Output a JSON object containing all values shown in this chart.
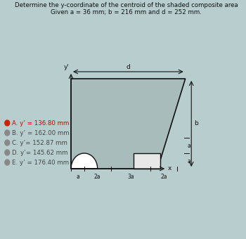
{
  "title": "Determine the y-coordinate of the centroid of the shaded composite area",
  "given": "Given a = 36 mm; b = 216 mm and d = 252 mm.",
  "choices": [
    "A. y’ = 136.80 mm",
    "B. y’ = 162.00 mm",
    "C. y’= 152.87 mm",
    "D. y’= 145.62 mm",
    "E. y’ = 176.40 mm"
  ],
  "correct_index": 0,
  "bg_color": "#b8cece",
  "shape_fill": "#a8bcbc",
  "rect_fill": "#e8e8e8",
  "line_color": "#111111",
  "text_color": "#111111",
  "dim_color": "#111111",
  "choice_colors": [
    "#cc0000",
    "#444444",
    "#444444",
    "#444444",
    "#444444"
  ],
  "bullet_colors": [
    "#cc2200",
    "#888888",
    "#888888",
    "#888888",
    "#888888"
  ]
}
